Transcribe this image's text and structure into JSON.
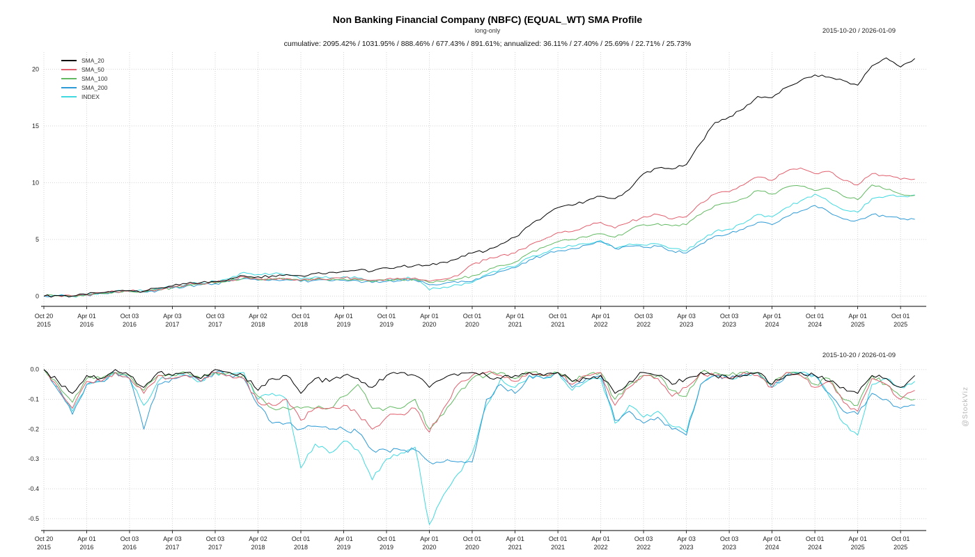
{
  "header": {
    "title": "Non Banking Financial Company (NBFC) (EQUAL_WT) SMA Profile",
    "subtitle": "long-only",
    "stats": "cumulative: 2095.42% / 1031.95% / 888.46% / 677.43% / 891.61%; annualized: 36.11% / 27.40% / 25.69% / 22.71% / 25.73%",
    "date_range": "2015-10-20 / 2026-01-09",
    "date_range_bottom": "2015-10-20 / 2026-01-09"
  },
  "watermark": "@StockViz",
  "axes": {
    "x_ticks": [
      {
        "i": 0,
        "l1": "Oct 20",
        "l2": "2015"
      },
      {
        "i": 3,
        "l1": "Apr 01",
        "l2": "2016"
      },
      {
        "i": 6,
        "l1": "Oct 03",
        "l2": "2016"
      },
      {
        "i": 9,
        "l1": "Apr 03",
        "l2": "2017"
      },
      {
        "i": 12,
        "l1": "Oct 03",
        "l2": "2017"
      },
      {
        "i": 15,
        "l1": "Apr 02",
        "l2": "2018"
      },
      {
        "i": 18,
        "l1": "Oct 01",
        "l2": "2018"
      },
      {
        "i": 21,
        "l1": "Apr 01",
        "l2": "2019"
      },
      {
        "i": 24,
        "l1": "Oct 01",
        "l2": "2019"
      },
      {
        "i": 27,
        "l1": "Apr 01",
        "l2": "2020"
      },
      {
        "i": 30,
        "l1": "Oct 01",
        "l2": "2020"
      },
      {
        "i": 33,
        "l1": "Apr 01",
        "l2": "2021"
      },
      {
        "i": 36,
        "l1": "Oct 01",
        "l2": "2021"
      },
      {
        "i": 39,
        "l1": "Apr 01",
        "l2": "2022"
      },
      {
        "i": 42,
        "l1": "Oct 03",
        "l2": "2022"
      },
      {
        "i": 45,
        "l1": "Apr 03",
        "l2": "2023"
      },
      {
        "i": 48,
        "l1": "Oct 03",
        "l2": "2023"
      },
      {
        "i": 51,
        "l1": "Apr 01",
        "l2": "2024"
      },
      {
        "i": 54,
        "l1": "Oct 01",
        "l2": "2024"
      },
      {
        "i": 57,
        "l1": "Apr 01",
        "l2": "2025"
      },
      {
        "i": 60,
        "l1": "Oct 01",
        "l2": "2025"
      }
    ]
  },
  "chart_data": [
    {
      "type": "line",
      "title": "cumulative returns",
      "ylim": [
        -0.9,
        21.5
      ],
      "yticks": [
        {
          "v": 0,
          "label": "0"
        },
        {
          "v": 5,
          "label": "5"
        },
        {
          "v": 10,
          "label": "10"
        },
        {
          "v": 15,
          "label": "15"
        },
        {
          "v": 20,
          "label": "20"
        }
      ],
      "x": [
        "2015-10",
        "2015-12",
        "2016-02",
        "2016-04",
        "2016-06",
        "2016-08",
        "2016-10",
        "2016-12",
        "2017-02",
        "2017-04",
        "2017-06",
        "2017-08",
        "2017-10",
        "2017-12",
        "2018-02",
        "2018-04",
        "2018-06",
        "2018-08",
        "2018-10",
        "2018-12",
        "2019-02",
        "2019-04",
        "2019-06",
        "2019-08",
        "2019-10",
        "2019-12",
        "2020-02",
        "2020-04",
        "2020-06",
        "2020-08",
        "2020-10",
        "2020-12",
        "2021-02",
        "2021-04",
        "2021-06",
        "2021-08",
        "2021-10",
        "2021-12",
        "2022-02",
        "2022-04",
        "2022-06",
        "2022-08",
        "2022-10",
        "2022-12",
        "2023-02",
        "2023-04",
        "2023-06",
        "2023-08",
        "2023-10",
        "2023-12",
        "2024-02",
        "2024-04",
        "2024-06",
        "2024-08",
        "2024-10",
        "2024-12",
        "2025-02",
        "2025-04",
        "2025-06",
        "2025-08",
        "2025-10",
        "2025-12"
      ],
      "series": [
        {
          "name": "SMA_20",
          "color": "#000000",
          "values": [
            0,
            0.05,
            0,
            0.15,
            0.3,
            0.45,
            0.5,
            0.45,
            0.7,
            0.9,
            1.1,
            1.2,
            1.3,
            1.5,
            1.8,
            1.7,
            1.8,
            1.9,
            1.8,
            2.0,
            2.1,
            2.2,
            2.3,
            2.2,
            2.5,
            2.6,
            2.7,
            2.7,
            3.0,
            3.3,
            3.8,
            4.0,
            4.6,
            5.2,
            6.2,
            7.0,
            7.8,
            8.0,
            8.4,
            8.8,
            8.6,
            9.4,
            10.8,
            11.3,
            11.2,
            11.6,
            13.5,
            15.3,
            15.8,
            16.5,
            17.6,
            17.5,
            18.4,
            19.0,
            19.5,
            19.3,
            19.0,
            18.6,
            20.3,
            21.0,
            20.2,
            20.95
          ]
        },
        {
          "name": "SMA_50",
          "color": "#e15f6d",
          "values": [
            0,
            0.05,
            0,
            0.12,
            0.28,
            0.4,
            0.45,
            0.4,
            0.6,
            0.8,
            1.0,
            1.1,
            1.2,
            1.4,
            1.7,
            1.5,
            1.5,
            1.55,
            1.4,
            1.5,
            1.5,
            1.6,
            1.5,
            1.4,
            1.5,
            1.5,
            1.6,
            1.3,
            1.5,
            1.8,
            2.8,
            3.2,
            3.6,
            3.8,
            4.5,
            5.0,
            5.6,
            5.7,
            6.2,
            6.5,
            6.0,
            6.5,
            7.0,
            7.2,
            6.8,
            7.0,
            8.2,
            9.0,
            9.2,
            9.8,
            10.5,
            10.2,
            11.0,
            11.3,
            10.8,
            11.0,
            10.2,
            9.8,
            10.8,
            10.6,
            10.3,
            10.32
          ]
        },
        {
          "name": "SMA_100",
          "color": "#62b962",
          "values": [
            0,
            0.04,
            0,
            0.1,
            0.25,
            0.38,
            0.42,
            0.38,
            0.55,
            0.75,
            0.95,
            1.05,
            1.15,
            1.35,
            1.6,
            1.45,
            1.5,
            1.5,
            1.35,
            1.45,
            1.4,
            1.5,
            1.45,
            1.3,
            1.4,
            1.45,
            1.5,
            1.2,
            1.3,
            1.5,
            1.8,
            2.2,
            2.7,
            3.0,
            3.8,
            4.3,
            4.8,
            5.0,
            5.2,
            5.5,
            5.2,
            5.8,
            6.3,
            6.4,
            6.2,
            6.3,
            7.2,
            8.0,
            8.2,
            8.6,
            9.3,
            9.0,
            9.6,
            9.7,
            9.3,
            9.5,
            8.8,
            8.5,
            9.8,
            9.4,
            9.0,
            8.88
          ]
        },
        {
          "name": "SMA_200",
          "color": "#2e9bd6",
          "values": [
            0,
            0.03,
            0,
            0.1,
            0.22,
            0.35,
            0.4,
            0.36,
            0.5,
            0.7,
            0.9,
            1.0,
            1.1,
            1.3,
            1.55,
            1.4,
            1.45,
            1.45,
            1.3,
            1.4,
            1.35,
            1.4,
            1.35,
            1.2,
            1.3,
            1.35,
            1.4,
            1.0,
            1.1,
            1.2,
            1.3,
            1.8,
            2.2,
            2.5,
            3.2,
            3.6,
            4.0,
            4.2,
            4.5,
            4.8,
            4.2,
            4.4,
            4.3,
            4.4,
            4.0,
            3.8,
            4.6,
            5.3,
            5.5,
            5.9,
            6.5,
            6.3,
            7.0,
            7.5,
            8.0,
            7.4,
            6.8,
            6.7,
            7.2,
            7.0,
            6.8,
            6.77
          ]
        },
        {
          "name": "INDEX",
          "color": "#40d9e0",
          "values": [
            0,
            0.05,
            -0.02,
            0.12,
            0.3,
            0.45,
            0.5,
            0.42,
            0.65,
            0.85,
            1.05,
            1.15,
            1.3,
            1.55,
            2.1,
            1.9,
            1.95,
            1.9,
            1.5,
            1.7,
            1.6,
            1.7,
            1.6,
            1.35,
            1.5,
            1.55,
            1.6,
            0.55,
            0.8,
            1.0,
            1.2,
            1.9,
            2.4,
            2.6,
            3.4,
            3.8,
            4.3,
            4.4,
            4.6,
            4.9,
            4.2,
            4.6,
            4.5,
            4.6,
            4.2,
            4.0,
            4.9,
            5.7,
            5.9,
            6.4,
            7.2,
            7.0,
            7.8,
            8.4,
            9.0,
            8.3,
            7.6,
            7.4,
            8.6,
            8.8,
            8.8,
            8.92
          ]
        }
      ]
    },
    {
      "type": "line",
      "title": "drawdowns",
      "ylim": [
        -0.54,
        0.018
      ],
      "yticks": [
        {
          "v": 0,
          "label": "0.0"
        },
        {
          "v": -0.1,
          "label": "-0.1"
        },
        {
          "v": -0.2,
          "label": "-0.2"
        },
        {
          "v": -0.3,
          "label": "-0.3"
        },
        {
          "v": -0.4,
          "label": "-0.4"
        },
        {
          "v": -0.5,
          "label": "-0.5"
        }
      ],
      "x": [
        "2015-10",
        "2015-12",
        "2016-02",
        "2016-04",
        "2016-06",
        "2016-08",
        "2016-10",
        "2016-12",
        "2017-02",
        "2017-04",
        "2017-06",
        "2017-08",
        "2017-10",
        "2017-12",
        "2018-02",
        "2018-04",
        "2018-06",
        "2018-08",
        "2018-10",
        "2018-12",
        "2019-02",
        "2019-04",
        "2019-06",
        "2019-08",
        "2019-10",
        "2019-12",
        "2020-02",
        "2020-04",
        "2020-06",
        "2020-08",
        "2020-10",
        "2020-12",
        "2021-02",
        "2021-04",
        "2021-06",
        "2021-08",
        "2021-10",
        "2021-12",
        "2022-02",
        "2022-04",
        "2022-06",
        "2022-08",
        "2022-10",
        "2022-12",
        "2023-02",
        "2023-04",
        "2023-06",
        "2023-08",
        "2023-10",
        "2023-12",
        "2024-02",
        "2024-04",
        "2024-06",
        "2024-08",
        "2024-10",
        "2024-12",
        "2025-02",
        "2025-04",
        "2025-06",
        "2025-08",
        "2025-10",
        "2025-12"
      ],
      "series": [
        {
          "name": "SMA_20",
          "color": "#000000",
          "values": [
            0,
            -0.04,
            -0.08,
            -0.02,
            -0.03,
            0,
            -0.02,
            -0.06,
            -0.01,
            -0.02,
            -0.01,
            -0.03,
            0,
            -0.01,
            -0.02,
            -0.07,
            -0.03,
            -0.02,
            -0.08,
            -0.03,
            -0.04,
            -0.02,
            -0.03,
            -0.06,
            -0.02,
            -0.01,
            -0.02,
            -0.06,
            -0.03,
            -0.02,
            -0.01,
            -0.02,
            -0.03,
            -0.02,
            -0.01,
            -0.02,
            -0.01,
            -0.04,
            -0.03,
            -0.02,
            -0.08,
            -0.04,
            -0.01,
            -0.02,
            -0.05,
            -0.03,
            -0.01,
            -0.02,
            -0.03,
            -0.02,
            -0.01,
            -0.05,
            -0.02,
            -0.01,
            -0.02,
            -0.04,
            -0.06,
            -0.08,
            -0.02,
            -0.03,
            -0.06,
            -0.02
          ]
        },
        {
          "name": "SMA_50",
          "color": "#e15f6d",
          "values": [
            0,
            -0.06,
            -0.13,
            -0.04,
            -0.04,
            -0.01,
            -0.03,
            -0.08,
            -0.02,
            -0.03,
            -0.02,
            -0.04,
            -0.01,
            -0.02,
            -0.03,
            -0.11,
            -0.12,
            -0.1,
            -0.17,
            -0.13,
            -0.13,
            -0.12,
            -0.15,
            -0.2,
            -0.16,
            -0.15,
            -0.13,
            -0.21,
            -0.13,
            -0.05,
            -0.02,
            -0.01,
            -0.02,
            -0.04,
            -0.01,
            -0.02,
            -0.01,
            -0.05,
            -0.02,
            -0.01,
            -0.12,
            -0.06,
            -0.02,
            -0.03,
            -0.09,
            -0.06,
            -0.01,
            -0.02,
            -0.03,
            -0.01,
            -0.02,
            -0.06,
            -0.01,
            -0.02,
            -0.06,
            -0.04,
            -0.11,
            -0.14,
            -0.03,
            -0.05,
            -0.1,
            -0.07
          ]
        },
        {
          "name": "SMA_100",
          "color": "#62b962",
          "values": [
            0,
            -0.05,
            -0.11,
            -0.03,
            -0.03,
            -0.01,
            -0.02,
            -0.07,
            -0.02,
            -0.02,
            -0.01,
            -0.03,
            -0.01,
            -0.01,
            -0.02,
            -0.09,
            -0.13,
            -0.13,
            -0.13,
            -0.13,
            -0.13,
            -0.09,
            -0.05,
            -0.13,
            -0.13,
            -0.13,
            -0.1,
            -0.2,
            -0.15,
            -0.08,
            -0.03,
            -0.02,
            -0.01,
            -0.03,
            -0.01,
            -0.02,
            -0.01,
            -0.04,
            -0.02,
            -0.01,
            -0.1,
            -0.05,
            -0.02,
            -0.02,
            -0.07,
            -0.09,
            -0.01,
            -0.01,
            -0.02,
            -0.01,
            -0.01,
            -0.05,
            -0.01,
            -0.02,
            -0.05,
            -0.03,
            -0.1,
            -0.12,
            -0.02,
            -0.05,
            -0.09,
            -0.1
          ]
        },
        {
          "name": "SMA_200",
          "color": "#2e9bd6",
          "values": [
            0,
            -0.07,
            -0.15,
            -0.05,
            -0.04,
            -0.01,
            -0.03,
            -0.2,
            -0.05,
            -0.03,
            -0.02,
            -0.04,
            -0.01,
            -0.02,
            -0.03,
            -0.12,
            -0.18,
            -0.18,
            -0.2,
            -0.19,
            -0.2,
            -0.2,
            -0.21,
            -0.27,
            -0.27,
            -0.27,
            -0.27,
            -0.31,
            -0.31,
            -0.31,
            -0.31,
            -0.1,
            -0.05,
            -0.08,
            -0.02,
            -0.03,
            -0.01,
            -0.06,
            -0.03,
            -0.02,
            -0.17,
            -0.14,
            -0.18,
            -0.16,
            -0.2,
            -0.22,
            -0.05,
            -0.02,
            -0.03,
            -0.02,
            -0.01,
            -0.06,
            -0.02,
            -0.01,
            -0.02,
            -0.08,
            -0.14,
            -0.15,
            -0.08,
            -0.1,
            -0.13,
            -0.12
          ]
        },
        {
          "name": "INDEX",
          "color": "#40d9e0",
          "values": [
            0,
            -0.06,
            -0.14,
            -0.05,
            -0.04,
            -0.01,
            -0.03,
            -0.12,
            -0.04,
            -0.02,
            -0.02,
            -0.04,
            -0.01,
            -0.02,
            -0.01,
            -0.1,
            -0.08,
            -0.1,
            -0.33,
            -0.25,
            -0.28,
            -0.24,
            -0.27,
            -0.37,
            -0.3,
            -0.28,
            -0.26,
            -0.52,
            -0.42,
            -0.35,
            -0.28,
            -0.12,
            -0.03,
            -0.06,
            -0.02,
            -0.03,
            -0.01,
            -0.07,
            -0.04,
            -0.03,
            -0.18,
            -0.12,
            -0.16,
            -0.14,
            -0.19,
            -0.21,
            -0.05,
            -0.02,
            -0.03,
            -0.02,
            -0.01,
            -0.06,
            -0.02,
            -0.01,
            -0.02,
            -0.09,
            -0.18,
            -0.22,
            -0.05,
            -0.03,
            -0.06,
            -0.04
          ]
        }
      ]
    }
  ]
}
